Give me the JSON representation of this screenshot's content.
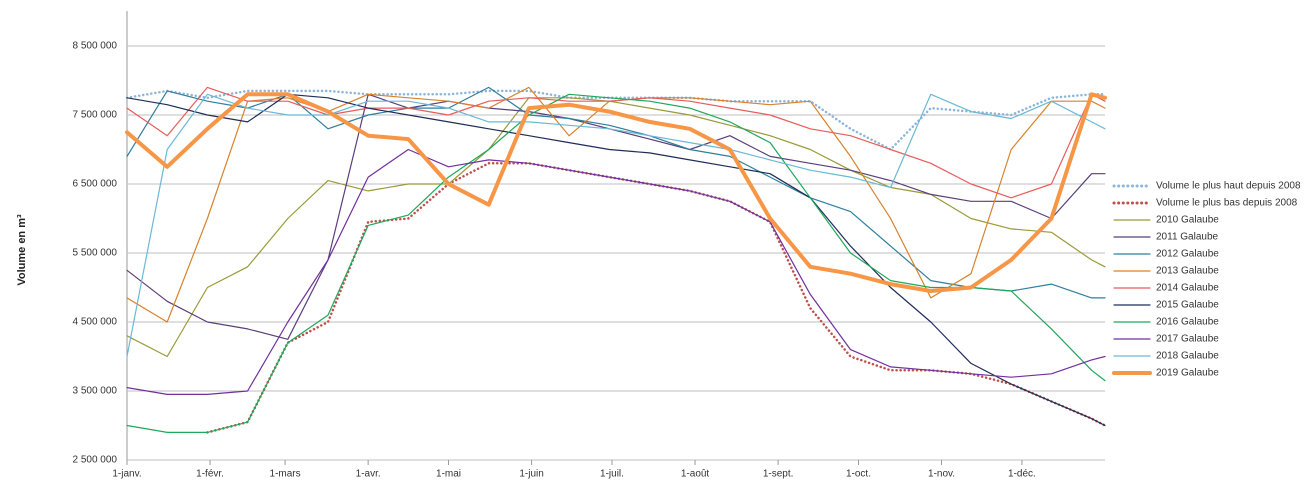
{
  "chart_data": {
    "type": "line",
    "y_label": "Volume en m³",
    "x": [
      0,
      15,
      30,
      45,
      60,
      75,
      90,
      105,
      120,
      135,
      150,
      165,
      180,
      195,
      210,
      225,
      240,
      255,
      270,
      285,
      300,
      315,
      330,
      345,
      360,
      365
    ],
    "xlim": [
      0,
      365
    ],
    "xticks": [
      {
        "value": 0,
        "label": "1-janv."
      },
      {
        "value": 31,
        "label": "1-févr."
      },
      {
        "value": 59,
        "label": "1-mars"
      },
      {
        "value": 90,
        "label": "1-avr."
      },
      {
        "value": 120,
        "label": "1-mai"
      },
      {
        "value": 151,
        "label": "1-juin"
      },
      {
        "value": 181,
        "label": "1-juil."
      },
      {
        "value": 212,
        "label": "1-août"
      },
      {
        "value": 243,
        "label": "1-sept."
      },
      {
        "value": 273,
        "label": "1-oct."
      },
      {
        "value": 304,
        "label": "1-nov."
      },
      {
        "value": 334,
        "label": "1-déc."
      }
    ],
    "ylim": [
      2500000,
      9000000
    ],
    "yticks": [
      {
        "value": 2500000,
        "label": "2 500 000"
      },
      {
        "value": 3500000,
        "label": "3 500 000"
      },
      {
        "value": 4500000,
        "label": "4 500 000"
      },
      {
        "value": 5500000,
        "label": "5 500 000"
      },
      {
        "value": 6500000,
        "label": "6 500 000"
      },
      {
        "value": 7500000,
        "label": "7 500 000"
      },
      {
        "value": 8500000,
        "label": "8 500 000"
      }
    ],
    "grid": true,
    "legend": "right",
    "series": [
      {
        "name": "Volume le plus haut depuis 2008",
        "color": "#8fb4d9",
        "line_style": "dotted",
        "values": [
          7750000,
          7850000,
          7750000,
          7850000,
          7850000,
          7850000,
          7800000,
          7800000,
          7800000,
          7850000,
          7850000,
          7750000,
          7750000,
          7750000,
          7750000,
          7700000,
          7700000,
          7700000,
          7300000,
          7000000,
          7600000,
          7550000,
          7500000,
          7750000,
          7800000,
          7800000
        ]
      },
      {
        "name": "Volume le plus bas depuis 2008",
        "color": "#c0504d",
        "line_style": "dotted",
        "values": [
          null,
          null,
          2900000,
          3050000,
          4200000,
          4500000,
          5950000,
          6000000,
          6500000,
          6800000,
          6800000,
          6700000,
          6600000,
          6500000,
          6400000,
          6250000,
          5950000,
          4700000,
          4000000,
          3800000,
          3800000,
          3750000,
          3600000,
          3350000,
          3100000,
          3000000
        ]
      },
      {
        "name": "2010 Galaube",
        "color": "#9a9a3a",
        "values": [
          4300000,
          4000000,
          5000000,
          5300000,
          6000000,
          6550000,
          6400000,
          6500000,
          6500000,
          7000000,
          7750000,
          7750000,
          7700000,
          7600000,
          7500000,
          7350000,
          7200000,
          7000000,
          6700000,
          6450000,
          6350000,
          6000000,
          5850000,
          5800000,
          5400000,
          5300000
        ]
      },
      {
        "name": "2011 Galaube",
        "color": "#5b3f7a",
        "values": [
          5250000,
          4800000,
          4500000,
          4400000,
          4250000,
          5400000,
          7800000,
          7600000,
          7700000,
          7600000,
          7550000,
          7450000,
          7300000,
          7150000,
          7000000,
          7200000,
          6900000,
          6800000,
          6700000,
          6550000,
          6350000,
          6250000,
          6250000,
          6000000,
          6650000,
          6650000
        ]
      },
      {
        "name": "2012 Galaube",
        "color": "#2e7f9e",
        "values": [
          6900000,
          7850000,
          7700000,
          7600000,
          7800000,
          7300000,
          7500000,
          7600000,
          7600000,
          7900000,
          7500000,
          7450000,
          7350000,
          7200000,
          7000000,
          6900000,
          6600000,
          6300000,
          6100000,
          5600000,
          5100000,
          5000000,
          4950000,
          5050000,
          4850000,
          4850000
        ]
      },
      {
        "name": "2013 Galaube",
        "color": "#d9822b",
        "values": [
          4850000,
          4500000,
          6000000,
          7700000,
          7750000,
          7550000,
          7800000,
          7750000,
          7700000,
          7600000,
          7900000,
          7200000,
          7700000,
          7750000,
          7750000,
          7700000,
          7650000,
          7700000,
          6900000,
          6000000,
          4850000,
          5200000,
          7000000,
          7700000,
          7700000,
          7600000
        ]
      },
      {
        "name": "2014 Galaube",
        "color": "#e85c5c",
        "values": [
          7600000,
          7200000,
          7900000,
          7700000,
          7700000,
          7500000,
          7600000,
          7600000,
          7500000,
          7700000,
          7750000,
          7700000,
          7700000,
          7750000,
          7700000,
          7600000,
          7500000,
          7300000,
          7200000,
          7000000,
          6800000,
          6500000,
          6300000,
          6500000,
          7800000,
          7700000
        ]
      },
      {
        "name": "2015 Galaube",
        "color": "#1f2d5a",
        "values": [
          7750000,
          7650000,
          7500000,
          7400000,
          7800000,
          7750000,
          7600000,
          7500000,
          7400000,
          7300000,
          7200000,
          7100000,
          7000000,
          6950000,
          6850000,
          6750000,
          6650000,
          6300000,
          5600000,
          5000000,
          4500000,
          3900000,
          3600000,
          3350000,
          3100000,
          3000000
        ]
      },
      {
        "name": "2016 Galaube",
        "color": "#1fa85a",
        "values": [
          3000000,
          2900000,
          2900000,
          3050000,
          4200000,
          4600000,
          5900000,
          6050000,
          6600000,
          7000000,
          7500000,
          7800000,
          7750000,
          7700000,
          7600000,
          7400000,
          7100000,
          6300000,
          5500000,
          5100000,
          5000000,
          5000000,
          4950000,
          4400000,
          3800000,
          3650000
        ]
      },
      {
        "name": "2017 Galaube",
        "color": "#7030a0",
        "values": [
          3550000,
          3450000,
          3450000,
          3500000,
          4500000,
          5400000,
          6600000,
          7000000,
          6750000,
          6850000,
          6800000,
          6700000,
          6600000,
          6500000,
          6400000,
          6250000,
          5950000,
          4900000,
          4100000,
          3850000,
          3800000,
          3750000,
          3700000,
          3750000,
          3950000,
          4000000
        ]
      },
      {
        "name": "2018 Galaube",
        "color": "#6bb8d6",
        "values": [
          4000000,
          7000000,
          7800000,
          7600000,
          7500000,
          7500000,
          7700000,
          7700000,
          7600000,
          7400000,
          7400000,
          7350000,
          7300000,
          7200000,
          7100000,
          7000000,
          6850000,
          6700000,
          6600000,
          6450000,
          7800000,
          7550000,
          7450000,
          7700000,
          7400000,
          7300000
        ]
      },
      {
        "name": "2019 Galaube",
        "color": "#f79646",
        "emphasis": true,
        "values": [
          7250000,
          6750000,
          7300000,
          7800000,
          7800000,
          7550000,
          7200000,
          7150000,
          6500000,
          6200000,
          7600000,
          7650000,
          7550000,
          7400000,
          7300000,
          7000000,
          6000000,
          5300000,
          5200000,
          5050000,
          4950000,
          5000000,
          5400000,
          6000000,
          7800000,
          7750000
        ]
      }
    ]
  }
}
